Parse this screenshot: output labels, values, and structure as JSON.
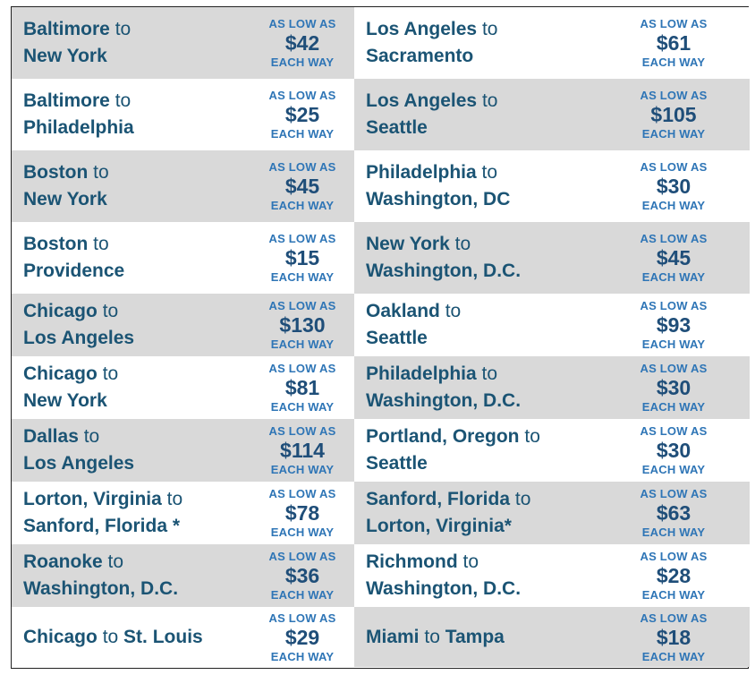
{
  "labels": {
    "prefix": "AS LOW AS",
    "suffix": "EACH WAY"
  },
  "colors": {
    "row_gray": "#d9d9d9",
    "row_white": "#ffffff",
    "route_text": "#1b5474",
    "label_text": "#2e75b6",
    "price_text": "#1f4e79"
  },
  "left": [
    {
      "from": "Baltimore",
      "to_word": "to",
      "to": "New York",
      "price": "$42",
      "bg": "gray"
    },
    {
      "from": "Baltimore",
      "to_word": "to",
      "to": "Philadelphia",
      "price": "$25",
      "bg": "white"
    },
    {
      "from": "Boston",
      "to_word": "to",
      "to": "New York",
      "price": "$45",
      "bg": "gray"
    },
    {
      "from": "Boston",
      "to_word": "to",
      "to": "Providence",
      "price": "$15",
      "bg": "white"
    },
    {
      "from": "Chicago",
      "to_word": "to",
      "to": "Los Angeles",
      "price": "$130",
      "bg": "gray"
    },
    {
      "from": "Chicago",
      "to_word": "to",
      "to": "New York",
      "price": "$81",
      "bg": "white"
    },
    {
      "from": "Dallas",
      "to_word": "to",
      "to": "Los Angeles",
      "price": "$114",
      "bg": "gray"
    },
    {
      "from": "Lorton, Virginia",
      "to_word": "to",
      "to": "Sanford, Florida *",
      "price": "$78",
      "bg": "white"
    },
    {
      "from": "Roanoke",
      "to_word": "to",
      "to": "Washington, D.C.",
      "price": "$36",
      "bg": "gray"
    },
    {
      "from": "Chicago",
      "to_word": "to",
      "to": "St. Louis",
      "price": "$29",
      "bg": "white",
      "single_line": true
    }
  ],
  "right": [
    {
      "from": "Los Angeles",
      "to_word": "to",
      "to": "Sacramento",
      "price": "$61",
      "bg": "white"
    },
    {
      "from": "Los Angeles",
      "to_word": "to",
      "to": "Seattle",
      "price": "$105",
      "bg": "gray"
    },
    {
      "from": "Philadelphia",
      "to_word": "to",
      "to": "Washington, DC",
      "price": "$30",
      "bg": "white"
    },
    {
      "from": "New York",
      "to_word": "to",
      "to": "Washington, D.C.",
      "price": "$45",
      "bg": "gray"
    },
    {
      "from": "Oakland",
      "to_word": "to",
      "to": "Seattle",
      "price": "$93",
      "bg": "white"
    },
    {
      "from": "Philadelphia",
      "to_word": "to",
      "to": "Washington, D.C.",
      "price": "$30",
      "bg": "gray"
    },
    {
      "from": "Portland, Oregon",
      "to_word": "to",
      "to": "Seattle",
      "price": "$30",
      "bg": "white"
    },
    {
      "from": "Sanford, Florida",
      "to_word": "to",
      "to": "Lorton, Virginia*",
      "price": "$63",
      "bg": "gray"
    },
    {
      "from": "Richmond",
      "to_word": "to",
      "to": "Washington, D.C.",
      "price": "$28",
      "bg": "white"
    },
    {
      "from": "Miami",
      "to_word": "to",
      "to": "Tampa",
      "price": "$18",
      "bg": "gray",
      "single_line": true
    }
  ]
}
